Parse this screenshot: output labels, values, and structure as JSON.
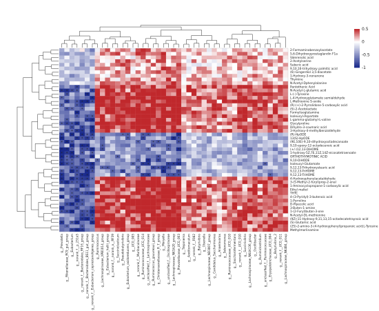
{
  "chart_data": {
    "type": "heatmap",
    "title": "",
    "xlabel": "",
    "ylabel": "",
    "legend_position": "top-right",
    "color_range": [
      -1,
      0.5
    ],
    "colorbar_ticks": [
      {
        "value": 0.5,
        "label": "0.5"
      },
      {
        "value": 0,
        "label": "0"
      },
      {
        "value": -0.5,
        "label": "-0.5"
      },
      {
        "value": -1,
        "label": "-1"
      }
    ],
    "colors": {
      "high": "#c0282c",
      "mid": "#ffffff",
      "low": "#1a2a8c"
    },
    "row_labels": [
      "2-Formaminobenzoylacetate",
      "5,6-Dihydroxyprostaglandin F1a",
      "Valerenolic acid",
      "2-Acetylserine",
      "Suberic acid",
      "9,10,16-trihydroxy palmitic acid",
      "(6)-Gingerdiol 3,5-diacetate",
      "1-Hydroxy-3-nonanone",
      "Thymine",
      "N-Acetyl-Dphenylalanine",
      "Pantothenic Acid",
      "N-Acetyl-L-glutamic acid",
      "L-(-)-Tyrosine",
      "L-4-Hydroxyglutamate semialdehyde",
      "L-Methionine S-oxide",
      "(R)-(+)-2-Pyrrolidone-5-carboxylic acid",
      "(S)-2-Acetolactate",
      "Formylisoglutamine",
      "Isoleucyl-Aspartate",
      "L-gamma-glutamyl-L-valine",
      "Glycylproline",
      "Dihydro-3-coumaric acid",
      "3-Hydroxy-4-methylbenzaldehyde",
      "(R)-HpODE",
      "13(S)-HpODE",
      "(9E,10E)-9,10-dihydroxyoctadecanoate",
      "9,10-epoxy-12-octadecenoic acid",
      "(+/-)12,13-DiHOME",
      "1-hydroxy-5Z,7E,11Z,14Z-eicosatetraenoate",
      "ORTHOTHYMOTINIC ACID",
      "9,10-DiHODE",
      "Isoleucyl-Glutamate",
      "9,12,13-Trihydroxystearic acid",
      "9,12,13-TriHOME",
      "9,12,13-TriHOME",
      "4-Hydroxyphenylacetaldehyde",
      "3-(5-Methyl-2-furyl)prop-2-enal",
      "1-Aminocyclopropane-1-carboxylic acid",
      "Ethyl maltol",
      "THTC",
      "4-(3-Pyridyl)-3-butenoic acid",
      "1-Pyrroline",
      "D-Pipecolic acid",
      "3-Buten-1-amine",
      "1-(2-Furyl)butan-3-one",
      "N-Acetyl-DL-methionine",
      "(9Z)-11-Hydroxy-9,11,13,15-octadecatetraynoic acid",
      "(S)-Glutamic acid",
      "(2S)-2-amino-3-(4-hydroxyphenyl)propanoic acid;L-Tyrosine",
      "Methylmorlinamine"
    ],
    "column_labels": [
      "g__Prevotella",
      "g__Rikenellaceae_RC9_gut_group",
      "g__Eubacterium",
      "g__norank_f__p_251o5",
      "g__norank_f__Bacteroidales_RF16_group",
      "g__norank_f__Bacteroidales_BS11_gut_group",
      "g__norank_f__Eubacterium_coprostanoligenes_group",
      "g__Ruminococcus",
      "g__Lachnospiraceae_XPB1014_group",
      "g__Eubacterium_hallii_group",
      "g__norank_f__norank_o__RF39",
      "g__Succiniclasticum",
      "g__Pseudobutyrivibrio",
      "g__Eubacterium_oxidoreducens_group",
      "g__UCG_005",
      "g__norank_f__Muribaculaceae",
      "g__Ruminococcaceae_UCG_014",
      "g__unclassified_f__Lachnospiraceae",
      "g__Ruminococcus_gauvreauii_group",
      "g__Christensenellaceae_R_7_group",
      "g__Moryella",
      "g__unclassified_f__Oscillospiraceae",
      "g__Lachnospiraceae_NK3A20_group",
      "g__Prevotellaceae_UCG_003",
      "g__Treponema",
      "g__Acetitomaculum",
      "g__norank_f__F082",
      "g__Butyrivibrio",
      "g__Olsenella",
      "g__Lachnospiraceae_ND3007_group",
      "g__Candidatus_Saccharimonas",
      "g__Anaerovorax",
      "g__Selenomonas",
      "g__Ruminococcaceae_UCG_010",
      "g__Saccharofermentans",
      "g__norank_f__UCG_010",
      "g__Succinivibrio",
      "g__Lachnospiraceae_NK4A136_group",
      "g__Oscillibacter",
      "g__Ruminiclostridium",
      "g__unclassified_f__Ruminococcaceae",
      "g__Erysipelotrichaceae_UCG_004",
      "g__Butyrivibrio_2",
      "g__norank_f__UCG_011",
      "g__Lachnospiraceae_NK4B4_group"
    ],
    "row_groups": [
      {
        "from": 0,
        "to": 9,
        "value": 0.12
      },
      {
        "from": 10,
        "to": 22,
        "value": 0.45
      },
      {
        "from": 23,
        "to": 34,
        "value": -0.35
      },
      {
        "from": 35,
        "to": 49,
        "value": 0.05
      }
    ],
    "column_groups": [
      {
        "from": 0,
        "to": 6,
        "sign": -1,
        "strength": 0.85
      },
      {
        "from": 7,
        "to": 14,
        "sign": 1,
        "strength": 0.55
      },
      {
        "from": 15,
        "to": 23,
        "sign": 1,
        "strength": 0.75
      },
      {
        "from": 24,
        "to": 34,
        "sign": 1,
        "strength": 0.35
      },
      {
        "from": 35,
        "to": 44,
        "sign": 1,
        "strength": 0.45
      }
    ],
    "note_marks": "*"
  }
}
